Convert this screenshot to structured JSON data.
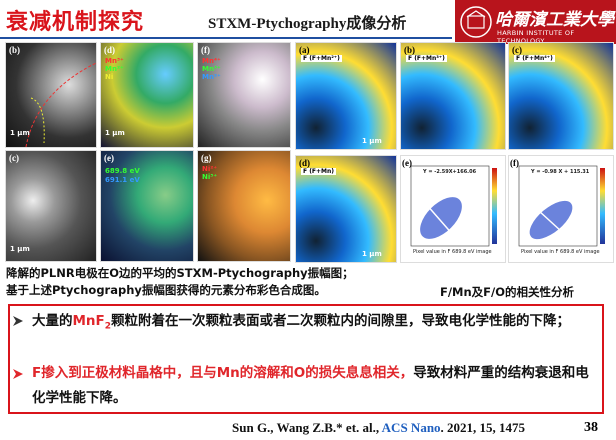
{
  "header": {
    "title": "衰减机制探究",
    "subtitle": "STXM-Ptychography成像分析",
    "logo_cn": "哈爾濱工業大學",
    "logo_en": "HARBIN INSTITUTE OF TECHNOLOGY"
  },
  "figure": {
    "left": {
      "b": "(b)",
      "c": "(c)",
      "d": "(d)",
      "e": "(e)",
      "f": "(f)",
      "g": "(g)",
      "scale": "1 μm",
      "d_legend": [
        "Mn³⁺",
        "Mn²⁺",
        "Ni"
      ],
      "e_legend": [
        "689.8 eV",
        "691.1 eV"
      ],
      "f_legend": [
        "Mn⁴⁺",
        "Mn³⁺",
        "Mn²⁺"
      ],
      "g_legend": [
        "Ni²⁺",
        "Ni³⁺"
      ]
    },
    "right": {
      "a": "(a)",
      "b": "(b)",
      "c": "(c)",
      "d": "(d)",
      "e": "(e)",
      "f": "(f)",
      "scale": "1 μm",
      "a_tag": "F (F+Mn²⁺)",
      "b_tag": "F (F+Mn³⁺)",
      "c_tag": "F (F+Mn⁴⁺)",
      "d_tag": "F (F+Mn)",
      "e_eq": "Y = -2.59X+166.06",
      "f_eq": "Y = -0.98 X + 115.31",
      "x_label": "Pixel value in F 689.8 eV image",
      "y_label": "Pixel value in Averaged O image"
    }
  },
  "captions": {
    "left": [
      "降解的PLNR电极在O边的平均的STXM-Ptychography振幅图；",
      "基于上述Ptychography振幅图获得的元素分布彩色合成图。"
    ],
    "right": "F/Mn及F/O的相关性分析"
  },
  "bullets": [
    {
      "parts": [
        "大量的",
        "MnF",
        "2",
        "颗粒附着在一次颗粒表面或者二次颗粒内的间隙里，导致电化学性能的下降；"
      ]
    },
    {
      "parts": [
        "F掺入到正极材料晶格中，且与Mn的溶解和O的损失息息相关，",
        "导致材料严重的结构衰退和电化学性能下降。"
      ]
    }
  ],
  "citation": {
    "authors": "Sun G., Wang Z.B.* et. al., ",
    "journal": "ACS Nano",
    "rest": ". 2021, 15, 1475"
  },
  "page": "38"
}
